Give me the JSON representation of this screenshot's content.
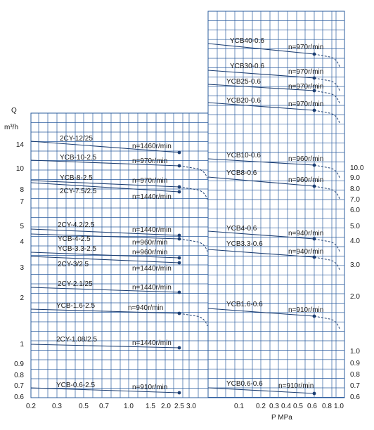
{
  "chart_data": [
    {
      "type": "line",
      "yaxis_title": "Q",
      "yaxis_unit": "m³/h",
      "xticks": [
        "0.2",
        "0.3",
        "0.5",
        "0.7",
        "1.0",
        "1.5",
        "2.0",
        "2.5",
        "3.0"
      ],
      "yticks": [
        "0.6",
        "0.7",
        "0.8",
        "0.9",
        "1",
        "2",
        "3",
        "4",
        "5",
        "7",
        "8",
        "10",
        "14"
      ],
      "series": [
        {
          "name": "2CY-12/25",
          "speed": "n=1460r/min",
          "x": [
            0.2,
            2.5
          ],
          "y": [
            14,
            12.5
          ]
        },
        {
          "name": "YCB-10-2.5",
          "speed": "n=970r/min",
          "x": [
            0.2,
            2.5
          ],
          "y": [
            10.9,
            10.1
          ]
        },
        {
          "name": "YCB-8-2.5",
          "speed": "n=970r/min",
          "x": [
            0.2,
            2.5
          ],
          "y": [
            8.2,
            7.7
          ]
        },
        {
          "name": "2CY-7.5/2.5",
          "speed": "n=1440r/min",
          "x": [
            0.2,
            2.5
          ],
          "y": [
            8.1,
            7.4
          ]
        },
        {
          "name": "2CY-4.2/2.5",
          "speed": "n=1440r/min",
          "x": [
            0.2,
            2.5
          ],
          "y": [
            4.9,
            4.3
          ]
        },
        {
          "name": "YCB-4-2.5",
          "speed": "n=960r/min",
          "x": [
            0.2,
            2.5
          ],
          "y": [
            4.6,
            4.0
          ]
        },
        {
          "name": "YCB-3.3-2.5",
          "speed": "n=960r/min",
          "x": [
            0.2,
            2.5
          ],
          "y": [
            3.9,
            3.4
          ]
        },
        {
          "name": "2CY-3/2.5",
          "speed": "n=1440r/min",
          "x": [
            0.2,
            2.5
          ],
          "y": [
            3.5,
            3.1
          ]
        },
        {
          "name": "2CY-2.1/25",
          "speed": "n=1440r/min",
          "x": [
            0.2,
            2.5
          ],
          "y": [
            2.4,
            2.15
          ]
        },
        {
          "name": "YCB-1.6-2.5",
          "speed": "n=940r/min",
          "x": [
            0.2,
            2.5
          ],
          "y": [
            1.9,
            1.75
          ]
        },
        {
          "name": "2CY-1.08/2.5",
          "speed": "n=1440r/min",
          "x": [
            0.2,
            2.5
          ],
          "y": [
            1.2,
            1.05
          ]
        },
        {
          "name": "YCB-0.6-2.5",
          "speed": "n=910r/min",
          "x": [
            0.2,
            2.5
          ],
          "y": [
            0.66,
            0.61
          ]
        }
      ]
    },
    {
      "type": "line",
      "xaxis_title": "P  MPa",
      "xticks": [
        "0.1",
        "0.2",
        "0.3",
        "0.4",
        "0.5",
        "0.6",
        "0.8",
        "1.0"
      ],
      "yticks": [
        "0.6",
        "0.7",
        "0.8",
        "0.9",
        "1.0",
        "2.0",
        "3.0",
        "4.0",
        "5.0",
        "6.0",
        "7.0",
        "8.0",
        "9.0",
        "10.0"
      ],
      "series": [
        {
          "name": "YCB40-0.6",
          "speed": "n=970r/min",
          "x": [
            0.05,
            0.6
          ],
          "y": [
            45,
            40
          ]
        },
        {
          "name": "YCB30-0.6",
          "speed": "n=970r/min",
          "x": [
            0.05,
            0.6
          ],
          "y": [
            33.5,
            30.5
          ]
        },
        {
          "name": "YCB25-0.6",
          "speed": "n=970r/min",
          "x": [
            0.05,
            0.6
          ],
          "y": [
            27.5,
            24.8
          ]
        },
        {
          "name": "YCB20-0.6",
          "speed": "n=970r/min",
          "x": [
            0.05,
            0.6
          ],
          "y": [
            23,
            20
          ]
        },
        {
          "name": "YCB10-0.6",
          "speed": "n=960r/min",
          "x": [
            0.05,
            0.6
          ],
          "y": [
            11,
            10.1
          ]
        },
        {
          "name": "YCB8-0.6",
          "speed": "n=960r/min",
          "x": [
            0.05,
            0.6
          ],
          "y": [
            8.8,
            8
          ]
        },
        {
          "name": "YCB4-0.6",
          "speed": "n=940r/min",
          "x": [
            0.05,
            0.6
          ],
          "y": [
            4.6,
            4.1
          ]
        },
        {
          "name": "YCB3.3-0.6",
          "speed": "n=940r/min",
          "x": [
            0.05,
            0.6
          ],
          "y": [
            3.75,
            3.3
          ]
        },
        {
          "name": "YCB1.6-0.6",
          "speed": "n=910r/min",
          "x": [
            0.05,
            0.6
          ],
          "y": [
            1.85,
            1.7
          ]
        },
        {
          "name": "YCB0.6-0.6",
          "speed": "n=910r/min",
          "x": [
            0.05,
            0.6
          ],
          "y": [
            0.65,
            0.61
          ]
        }
      ]
    }
  ]
}
